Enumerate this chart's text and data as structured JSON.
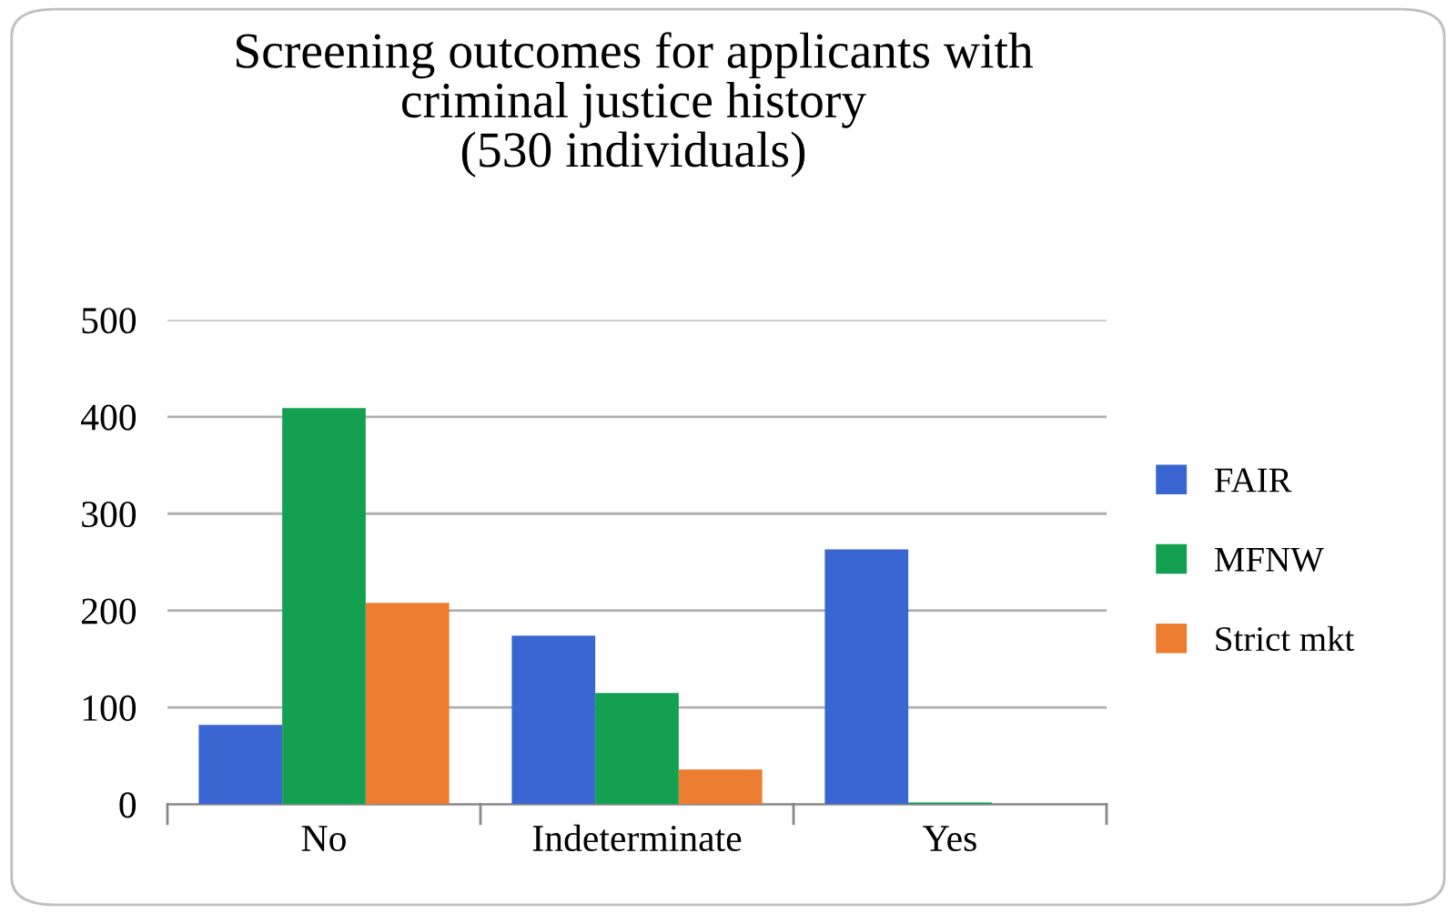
{
  "chart_data": {
    "type": "bar",
    "title": "Screening outcomes for applicants with\ncriminal justice history\n(530 individuals)",
    "categories": [
      "No",
      "Indeterminate",
      "Yes"
    ],
    "series": [
      {
        "name": "FAIR",
        "color": "#3a66d1",
        "values": [
          82,
          174,
          263
        ]
      },
      {
        "name": "MFNW",
        "color": "#13a050",
        "values": [
          409,
          115,
          2
        ]
      },
      {
        "name": "Strict mkt",
        "color": "#ed7d31",
        "values": [
          208,
          36,
          0
        ]
      }
    ],
    "ylim": [
      0,
      500
    ],
    "yticks": [
      0,
      100,
      200,
      300,
      400,
      500
    ],
    "grid": "y",
    "legend": "right"
  }
}
